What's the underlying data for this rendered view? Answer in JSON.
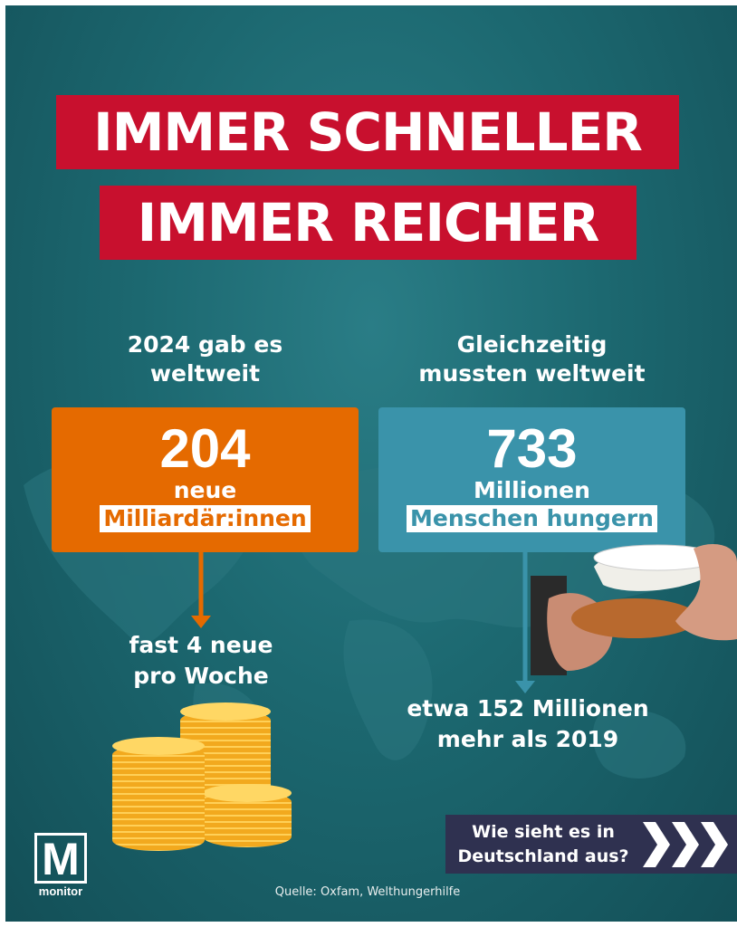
{
  "title": {
    "line1": "IMMER SCHNELLER",
    "line2": "IMMER REICHER"
  },
  "left": {
    "heading": [
      "2024 gab es",
      "weltweit"
    ],
    "number": "204",
    "line1": "neue",
    "highlight": "Milliardär:innen",
    "note": [
      "fast 4 neue",
      "pro Woche"
    ],
    "color": "#e56a00"
  },
  "right": {
    "heading": [
      "Gleichzeitig",
      "mussten weltweit"
    ],
    "number": "733",
    "line1": "Millionen",
    "highlight": "Menschen hungern",
    "note": [
      "etwa 152 Millionen",
      "mehr als 2019"
    ],
    "color": "#3a93aa"
  },
  "cta": {
    "line1": "Wie sieht es in",
    "line2": "Deutschland aus?",
    "icon": "chevrons-right-icon"
  },
  "logo": {
    "letter": "M",
    "name": "monitor"
  },
  "source": "Quelle: Oxfam, Welthungerhilfe",
  "colors": {
    "title_red": "#c8102e",
    "background": "#1c6870",
    "cta_bg": "#2f3150"
  }
}
